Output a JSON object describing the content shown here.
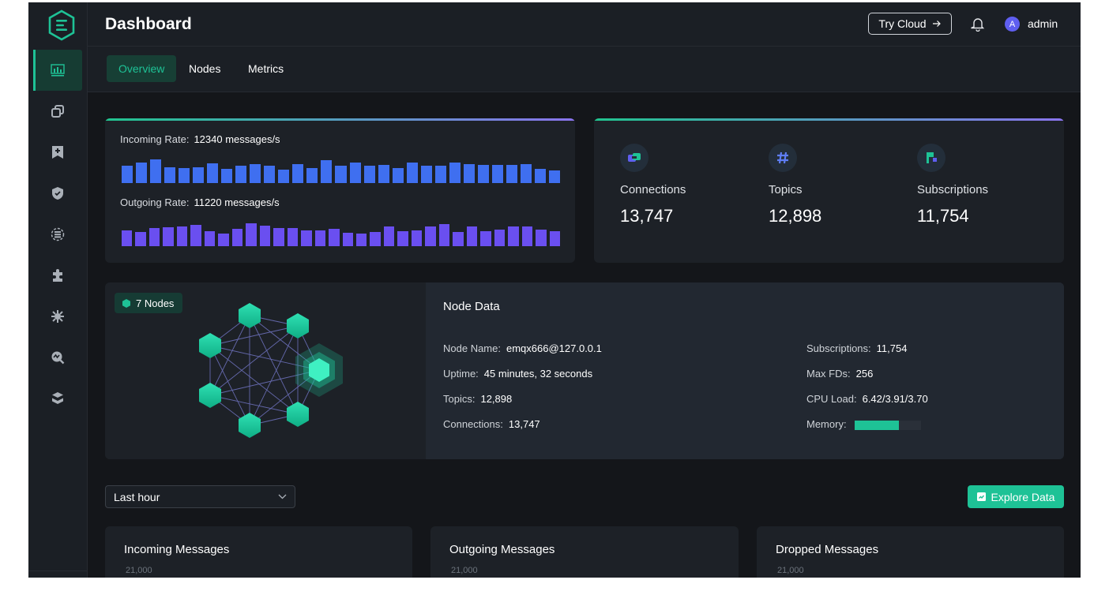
{
  "header": {
    "title": "Dashboard",
    "try_cloud": "Try Cloud",
    "user_initial": "A",
    "username": "admin"
  },
  "tabs": [
    {
      "label": "Overview",
      "active": true
    },
    {
      "label": "Nodes",
      "active": false
    },
    {
      "label": "Metrics",
      "active": false
    }
  ],
  "sidebar": {
    "items": [
      "dashboard-icon",
      "clients-icon",
      "topics-icon",
      "access-control-icon",
      "integration-icon",
      "extensions-icon",
      "diagnose-icon",
      "monitoring-icon",
      "management-icon"
    ],
    "active": "dashboard-icon"
  },
  "rates": {
    "incoming_label": "Incoming Rate:",
    "incoming_value": "12340 messages/s",
    "outgoing_label": "Outgoing Rate:",
    "outgoing_value": "11220 messages/s",
    "incoming_levels": [
      0.72,
      0.86,
      1.0,
      0.66,
      0.62,
      0.66,
      0.82,
      0.6,
      0.72,
      0.8,
      0.72,
      0.58,
      0.8,
      0.62,
      0.95,
      0.73,
      0.86,
      0.73,
      0.75,
      0.63,
      0.86,
      0.72,
      0.72,
      0.86,
      0.8,
      0.75,
      0.75,
      0.75,
      0.8,
      0.61,
      0.53
    ],
    "outgoing_levels": [
      0.65,
      0.6,
      0.78,
      0.8,
      0.84,
      0.9,
      0.62,
      0.52,
      0.72,
      0.95,
      0.88,
      0.78,
      0.75,
      0.68,
      0.68,
      0.72,
      0.58,
      0.52,
      0.6,
      0.82,
      0.62,
      0.68,
      0.84,
      0.93,
      0.6,
      0.82,
      0.62,
      0.7,
      0.83,
      0.83,
      0.7,
      0.62
    ]
  },
  "stats": [
    {
      "icon": "connections-icon",
      "label": "Connections",
      "value": "13,747"
    },
    {
      "icon": "topics-hash-icon",
      "label": "Topics",
      "value": "12,898"
    },
    {
      "icon": "subscriptions-icon",
      "label": "Subscriptions",
      "value": "11,754"
    }
  ],
  "nodes": {
    "badge": "7 Nodes",
    "title": "Node Data",
    "left": [
      {
        "label": "Node Name:",
        "value": "emqx666@127.0.0.1"
      },
      {
        "label": "Uptime:",
        "value": "45 minutes, 32 seconds"
      },
      {
        "label": "Topics:",
        "value": "12,898"
      },
      {
        "label": "Connections:",
        "value": "13,747"
      }
    ],
    "right": [
      {
        "label": "Subscriptions:",
        "value": "11,754"
      },
      {
        "label": "Max FDs:",
        "value": "256"
      },
      {
        "label": "CPU Load:",
        "value": "6.42/3.91/3.70"
      }
    ],
    "memory_label": "Memory:",
    "memory_fraction": 0.67
  },
  "time_range": {
    "selected": "Last hour"
  },
  "explore_button": "Explore Data",
  "charts": [
    {
      "title": "Incoming Messages",
      "tick": "21,000"
    },
    {
      "title": "Outgoing Messages",
      "tick": "21,000"
    },
    {
      "title": "Dropped Messages",
      "tick": "21,000"
    }
  ],
  "colors": {
    "accent": "#1ec296",
    "incoming_bar": "#3f6ff0",
    "outgoing_bar": "#6a4ff0"
  }
}
